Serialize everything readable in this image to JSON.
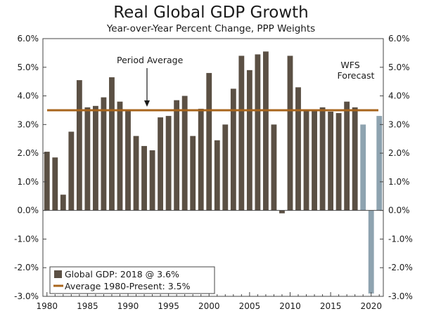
{
  "chart_data": {
    "type": "bar",
    "title": "Real Global GDP Growth",
    "subtitle": "Year-over-Year Percent Change, PPP Weights",
    "xlabel": "",
    "ylabel": "",
    "ylim": [
      -3,
      6
    ],
    "grid": false,
    "y_ticks": [
      "6.0%",
      "5.0%",
      "4.0%",
      "3.0%",
      "2.0%",
      "1.0%",
      "0.0%",
      "-1.0%",
      "-2.0%",
      "-3.0%"
    ],
    "x_ticks": [
      "1980",
      "1985",
      "1990",
      "1995",
      "2000",
      "2005",
      "2010",
      "2015",
      "2020"
    ],
    "series": [
      {
        "name": "Global GDP: 2018 @ 3.6%",
        "kind": "actual",
        "color": "#5b5044",
        "x": [
          1980,
          1981,
          1982,
          1983,
          1984,
          1985,
          1986,
          1987,
          1988,
          1989,
          1990,
          1991,
          1992,
          1993,
          1994,
          1995,
          1996,
          1997,
          1998,
          1999,
          2000,
          2001,
          2002,
          2003,
          2004,
          2005,
          2006,
          2007,
          2008,
          2009,
          2010,
          2011,
          2012,
          2013,
          2014,
          2015,
          2016,
          2017,
          2018
        ],
        "values": [
          2.05,
          1.85,
          0.55,
          2.75,
          4.55,
          3.6,
          3.65,
          3.95,
          4.65,
          3.8,
          3.5,
          2.6,
          2.25,
          2.1,
          3.25,
          3.3,
          3.85,
          4.0,
          2.6,
          3.55,
          4.8,
          2.45,
          3.0,
          4.25,
          5.4,
          4.9,
          5.45,
          5.55,
          3.0,
          -0.1,
          5.4,
          4.3,
          3.5,
          3.5,
          3.6,
          3.45,
          3.4,
          3.8,
          3.6
        ]
      },
      {
        "name": "WFS Forecast",
        "kind": "forecast",
        "color": "#8ea3b0",
        "x": [
          2019,
          2020,
          2021
        ],
        "values": [
          3.0,
          -2.9,
          3.3
        ]
      },
      {
        "name": "Average 1980-Present: 3.5%",
        "kind": "line",
        "color": "#a8651c",
        "value": 3.5
      }
    ],
    "annotations": {
      "period_average": "Period Average",
      "wfs": "WFS",
      "forecast": "Forecast"
    },
    "legend": {
      "position": "bottom-left",
      "bar_label": "Global GDP: 2018 @ 3.6%",
      "line_label": "Average 1980-Present: 3.5%"
    }
  }
}
